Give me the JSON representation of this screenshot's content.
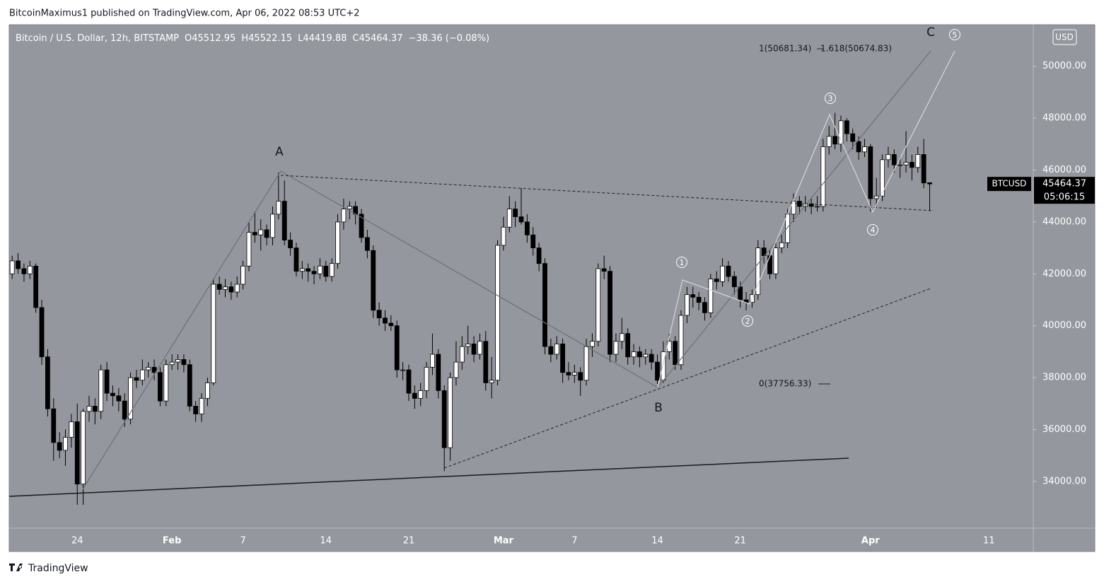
{
  "page": {
    "byline": "BitcoinMaximus1 published on TradingView.com, Apr 06, 2022 08:53 UTC+2",
    "brand": "TradingView",
    "currency": "USD",
    "ticker": "BTCUSD",
    "countdown": "05:06:15"
  },
  "chart_data": {
    "type": "candlestick",
    "title": "Bitcoin / U.S. Dollar, 12h, BITSTAMP",
    "ohlc_prefixes": [
      "O",
      "H",
      "L",
      "C"
    ],
    "change": "−38.36 (−0.08%)",
    "up_color": "#ffffff",
    "down_color": "#000000",
    "ylim": [
      32200,
      51600
    ],
    "yticks": [
      {
        "value": 34000,
        "label": "34000.00"
      },
      {
        "value": 36000,
        "label": "36000.00"
      },
      {
        "value": 38000,
        "label": "38000.00"
      },
      {
        "value": 40000,
        "label": "40000.00"
      },
      {
        "value": 42000,
        "label": "42000.00"
      },
      {
        "value": 44000,
        "label": "44000.00"
      },
      {
        "value": 46000,
        "label": "46000.00"
      },
      {
        "value": 48000,
        "label": "48000.00"
      },
      {
        "value": 50000,
        "label": "50000.00"
      }
    ],
    "grid": false,
    "annotations": {
      "wave_a": "A",
      "wave_b": "B",
      "wave_c": "C",
      "waves": [
        "1",
        "2",
        "3",
        "4",
        "5"
      ],
      "fib_1": "1(50681.34)",
      "fib_1618": "1.618(50674.83)",
      "fib_0": "0(37756.33)"
    },
    "categories": [
      null,
      null,
      null,
      null,
      null,
      null,
      null,
      null,
      null,
      null,
      null,
      "24",
      null,
      null,
      null,
      null,
      null,
      null,
      null,
      null,
      null,
      null,
      null,
      null,
      null,
      null,
      null,
      "Feb",
      null,
      null,
      null,
      null,
      null,
      null,
      null,
      null,
      null,
      null,
      null,
      "7",
      null,
      null,
      null,
      null,
      null,
      null,
      null,
      null,
      null,
      null,
      null,
      null,
      null,
      "14",
      null,
      null,
      null,
      null,
      null,
      null,
      null,
      null,
      null,
      null,
      null,
      null,
      null,
      "21",
      null,
      null,
      null,
      null,
      null,
      null,
      null,
      null,
      null,
      null,
      null,
      null,
      null,
      null,
      null,
      "Mar",
      null,
      null,
      null,
      null,
      null,
      null,
      null,
      null,
      null,
      null,
      null,
      "7",
      null,
      null,
      null,
      null,
      null,
      null,
      null,
      null,
      null,
      null,
      null,
      null,
      null,
      "14",
      null,
      null,
      null,
      null,
      null,
      null,
      null,
      null,
      null,
      null,
      null,
      null,
      null,
      "21",
      null,
      null,
      null,
      null,
      null,
      null,
      null,
      null,
      null,
      null,
      null,
      null,
      null,
      null,
      null,
      null,
      null,
      null,
      null,
      null,
      null,
      "Apr",
      null,
      null,
      null,
      null,
      null,
      null,
      null,
      null,
      null,
      null,
      null,
      null,
      null,
      null,
      null,
      null,
      null,
      null,
      null,
      "11",
      null,
      null,
      null,
      null,
      null,
      null,
      null
    ],
    "ohlc": [
      [
        42000,
        42700,
        41800,
        42500
      ],
      [
        42500,
        42800,
        42000,
        42200
      ],
      [
        42200,
        42400,
        41700,
        42000
      ],
      [
        42000,
        42500,
        41800,
        42300
      ],
      [
        42300,
        42400,
        40500,
        40700
      ],
      [
        40700,
        41000,
        38500,
        38800
      ],
      [
        38800,
        39100,
        36500,
        36800
      ],
      [
        36800,
        37200,
        34800,
        35500
      ],
      [
        35500,
        35900,
        34900,
        35200
      ],
      [
        35200,
        36000,
        34600,
        35700
      ],
      [
        35700,
        36600,
        35300,
        36300
      ],
      [
        36300,
        37000,
        33100,
        33900
      ],
      [
        33900,
        36800,
        33100,
        36700
      ],
      [
        36700,
        37300,
        36300,
        36900
      ],
      [
        36900,
        37200,
        36200,
        36700
      ],
      [
        36700,
        38500,
        36400,
        38300
      ],
      [
        38300,
        38600,
        37100,
        37400
      ],
      [
        37400,
        37700,
        36900,
        37300
      ],
      [
        37300,
        37600,
        36700,
        37100
      ],
      [
        37100,
        37400,
        36100,
        36400
      ],
      [
        36400,
        38200,
        36200,
        38000
      ],
      [
        38000,
        38300,
        37600,
        37900
      ],
      [
        37900,
        38700,
        37700,
        38300
      ],
      [
        38300,
        38600,
        38000,
        38400
      ],
      [
        38400,
        38700,
        37900,
        38200
      ],
      [
        38200,
        38400,
        36900,
        37100
      ],
      [
        37100,
        38700,
        36900,
        38500
      ],
      [
        38500,
        38900,
        38300,
        38600
      ],
      [
        38600,
        38900,
        38300,
        38700
      ],
      [
        38700,
        38900,
        38200,
        38500
      ],
      [
        38500,
        38700,
        36700,
        36900
      ],
      [
        36900,
        37100,
        36300,
        36600
      ],
      [
        36600,
        37400,
        36300,
        37200
      ],
      [
        37200,
        38000,
        36900,
        37800
      ],
      [
        37800,
        41800,
        37700,
        41600
      ],
      [
        41600,
        41900,
        41200,
        41400
      ],
      [
        41400,
        41800,
        41100,
        41500
      ],
      [
        41500,
        41700,
        41000,
        41300
      ],
      [
        41300,
        41900,
        41100,
        41600
      ],
      [
        41600,
        42500,
        41400,
        42300
      ],
      [
        42300,
        44000,
        42100,
        43600
      ],
      [
        43600,
        44400,
        43200,
        43500
      ],
      [
        43500,
        44100,
        42900,
        43700
      ],
      [
        43700,
        43900,
        43100,
        43400
      ],
      [
        43400,
        44600,
        43100,
        44300
      ],
      [
        44300,
        45900,
        44100,
        44800
      ],
      [
        44800,
        45600,
        43100,
        43300
      ],
      [
        43300,
        43600,
        42700,
        43000
      ],
      [
        43000,
        43200,
        41900,
        42100
      ],
      [
        42100,
        42500,
        41800,
        42200
      ],
      [
        42200,
        42400,
        41700,
        42100
      ],
      [
        42100,
        42300,
        41600,
        42000
      ],
      [
        42000,
        42600,
        41800,
        42300
      ],
      [
        42300,
        42500,
        41700,
        41900
      ],
      [
        41900,
        42600,
        41700,
        42400
      ],
      [
        42400,
        44300,
        42200,
        44000
      ],
      [
        44000,
        44900,
        43700,
        44500
      ],
      [
        44500,
        44800,
        44100,
        44600
      ],
      [
        44600,
        44800,
        43900,
        44300
      ],
      [
        44300,
        44500,
        43200,
        43400
      ],
      [
        43400,
        43700,
        42600,
        42900
      ],
      [
        42900,
        43100,
        40300,
        40600
      ],
      [
        40600,
        40900,
        40000,
        40300
      ],
      [
        40300,
        40600,
        39800,
        40100
      ],
      [
        40100,
        40400,
        39800,
        40000
      ],
      [
        40000,
        40200,
        38000,
        38300
      ],
      [
        38300,
        38600,
        37900,
        38300
      ],
      [
        38300,
        38500,
        37100,
        37400
      ],
      [
        37400,
        37700,
        36800,
        37200
      ],
      [
        37200,
        37800,
        36900,
        37500
      ],
      [
        37500,
        38600,
        37200,
        38400
      ],
      [
        38400,
        39700,
        38100,
        38900
      ],
      [
        38900,
        39100,
        37200,
        37500
      ],
      [
        37500,
        37700,
        34400,
        35300
      ],
      [
        35300,
        38200,
        34800,
        38000
      ],
      [
        38000,
        39400,
        37700,
        38600
      ],
      [
        38600,
        39600,
        38300,
        39200
      ],
      [
        39200,
        40000,
        38900,
        39300
      ],
      [
        39300,
        39600,
        38600,
        38900
      ],
      [
        38900,
        39700,
        38700,
        39400
      ],
      [
        39400,
        39800,
        37500,
        37800
      ],
      [
        37800,
        38800,
        37200,
        37900
      ],
      [
        37900,
        43300,
        37700,
        43100
      ],
      [
        43100,
        44200,
        42900,
        43800
      ],
      [
        43800,
        45000,
        43600,
        44500
      ],
      [
        44500,
        44800,
        43800,
        44200
      ],
      [
        44200,
        45300,
        43900,
        44000
      ],
      [
        44000,
        44300,
        43200,
        43500
      ],
      [
        43500,
        43800,
        42700,
        43000
      ],
      [
        43000,
        43200,
        42100,
        42400
      ],
      [
        42400,
        42600,
        38900,
        39200
      ],
      [
        39200,
        39500,
        38600,
        38900
      ],
      [
        38900,
        39600,
        38700,
        39300
      ],
      [
        39300,
        39500,
        37800,
        38200
      ],
      [
        38200,
        38600,
        37900,
        38100
      ],
      [
        38100,
        38500,
        37800,
        38200
      ],
      [
        38200,
        38400,
        37300,
        37900
      ],
      [
        37900,
        39500,
        37700,
        39200
      ],
      [
        39200,
        39700,
        38800,
        39400
      ],
      [
        39400,
        42400,
        39200,
        42200
      ],
      [
        42200,
        42700,
        41800,
        42100
      ],
      [
        42100,
        42300,
        38600,
        38900
      ],
      [
        38900,
        39700,
        38600,
        39400
      ],
      [
        39400,
        40300,
        39100,
        39700
      ],
      [
        39700,
        39900,
        38500,
        38800
      ],
      [
        38800,
        39300,
        38500,
        39000
      ],
      [
        39000,
        39200,
        38400,
        38800
      ],
      [
        38800,
        39100,
        38500,
        38900
      ],
      [
        38900,
        39100,
        38300,
        38600
      ],
      [
        38600,
        38900,
        37756.33,
        37900
      ],
      [
        37900,
        39400,
        37800,
        39000
      ],
      [
        39000,
        39700,
        38700,
        39400
      ],
      [
        39400,
        39600,
        38300,
        38500
      ],
      [
        38500,
        40600,
        38300,
        40400
      ],
      [
        40400,
        41500,
        40100,
        41200
      ],
      [
        41200,
        41500,
        40700,
        41100
      ],
      [
        41100,
        41300,
        40600,
        40900
      ],
      [
        40900,
        41100,
        40200,
        40500
      ],
      [
        40500,
        42000,
        40300,
        41800
      ],
      [
        41800,
        42100,
        41400,
        41700
      ],
      [
        41700,
        42600,
        41500,
        42300
      ],
      [
        42300,
        42500,
        41700,
        41900
      ],
      [
        41900,
        42100,
        41200,
        41500
      ],
      [
        41500,
        41700,
        40700,
        41000
      ],
      [
        41000,
        41300,
        40600,
        40900
      ],
      [
        40900,
        41400,
        40700,
        41200
      ],
      [
        41200,
        43300,
        41000,
        43000
      ],
      [
        43000,
        43300,
        42400,
        42700
      ],
      [
        42700,
        42900,
        41800,
        42000
      ],
      [
        42000,
        43200,
        41800,
        43000
      ],
      [
        43000,
        43500,
        42800,
        43200
      ],
      [
        43200,
        44500,
        43000,
        44300
      ],
      [
        44300,
        45100,
        44000,
        44800
      ],
      [
        44800,
        45000,
        44300,
        44600
      ],
      [
        44600,
        45000,
        44400,
        44700
      ],
      [
        44700,
        44900,
        44300,
        44600
      ],
      [
        44600,
        45000,
        44400,
        44600
      ],
      [
        44600,
        47200,
        44400,
        46900
      ],
      [
        46900,
        47700,
        46600,
        47300
      ],
      [
        47300,
        48200,
        46800,
        47000
      ],
      [
        47000,
        48100,
        46700,
        47900
      ],
      [
        47900,
        48000,
        47100,
        47400
      ],
      [
        47400,
        47600,
        46800,
        47100
      ],
      [
        47100,
        47300,
        46400,
        46700
      ],
      [
        46700,
        47200,
        46500,
        46900
      ],
      [
        46900,
        47000,
        44400,
        44900
      ],
      [
        44900,
        45700,
        44600,
        45000
      ],
      [
        45000,
        46600,
        44800,
        46400
      ],
      [
        46400,
        46900,
        46100,
        46600
      ],
      [
        46600,
        46800,
        45900,
        46200
      ],
      [
        46200,
        46500,
        45700,
        46200
      ],
      [
        46200,
        47500,
        45900,
        46300
      ],
      [
        46300,
        46600,
        45600,
        46100
      ],
      [
        46100,
        46900,
        45900,
        46600
      ],
      [
        46600,
        47200,
        45300,
        45502.73
      ],
      [
        45512.95,
        45522.15,
        44419.88,
        45464.37
      ],
      null,
      null,
      null,
      null,
      null,
      null,
      null,
      null,
      null,
      null,
      null,
      null,
      null,
      null,
      null,
      null,
      null
    ]
  }
}
